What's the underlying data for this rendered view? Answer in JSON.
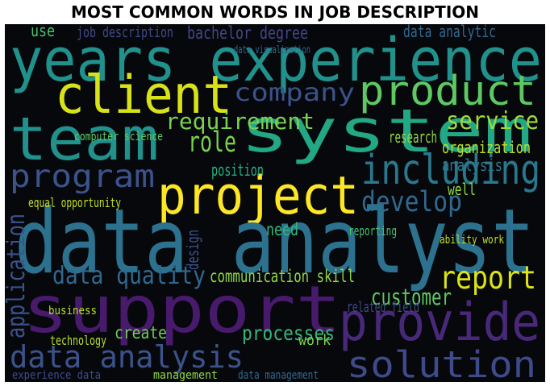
{
  "chart_data": {
    "type": "wordcloud",
    "title": "MOST COMMON WORDS IN JOB DESCRIPTION",
    "categories": [
      "years experience",
      "client",
      "product",
      "company",
      "system",
      "team",
      "requirement",
      "service",
      "role",
      "program",
      "including",
      "project",
      "develop",
      "data analyst",
      "support",
      "provide",
      "solution",
      "data analysis",
      "report",
      "customer",
      "data quality",
      "communication skill",
      "application",
      "processes",
      "create",
      "bachelor degree",
      "job description",
      "data analytic",
      "organization",
      "analysis",
      "position",
      "need",
      "design",
      "ability work",
      "research",
      "work",
      "technology",
      "experience data",
      "management",
      "data management",
      "computer science",
      "equal opportunity",
      "use",
      "data visualization",
      "reporting",
      "well",
      "related field",
      "business"
    ],
    "values": [
      62,
      54,
      42,
      25,
      62,
      62,
      23,
      25,
      29,
      33,
      42,
      54,
      29,
      92,
      67,
      54,
      38,
      32,
      33,
      23,
      25,
      18,
      25,
      21,
      18,
      18,
      15,
      17,
      17,
      17,
      17,
      18,
      17,
      12,
      17,
      15,
      13,
      12,
      12,
      12,
      12,
      13,
      17,
      11,
      13,
      17,
      15,
      12
    ],
    "colors": [
      "#21918c",
      "#d8e219",
      "#5ec962",
      "#3b528b",
      "#22a884",
      "#21918c",
      "#7ad151",
      "#a0da39",
      "#7ad151",
      "#3b528b",
      "#2a788e",
      "#fde725",
      "#31688e",
      "#2c728e",
      "#481a6c",
      "#482878",
      "#3e4a89",
      "#3b528b",
      "#dce319",
      "#5ec962",
      "#31688e",
      "#8fd744",
      "#3b528b",
      "#35b779",
      "#6ece58",
      "#404788",
      "#3e4a89",
      "#31688e",
      "#b8de29",
      "#2a788e",
      "#29af7f",
      "#35b779",
      "#3b528b",
      "#bddf26",
      "#90d743",
      "#7ad151",
      "#b5de2b",
      "#3e4a89",
      "#8fd744",
      "#31688e",
      "#5ec962",
      "#c2df23",
      "#4ac16d",
      "#31688e",
      "#4ac16d",
      "#90d743",
      "#3e4a89",
      "#b5de2b"
    ]
  }
}
